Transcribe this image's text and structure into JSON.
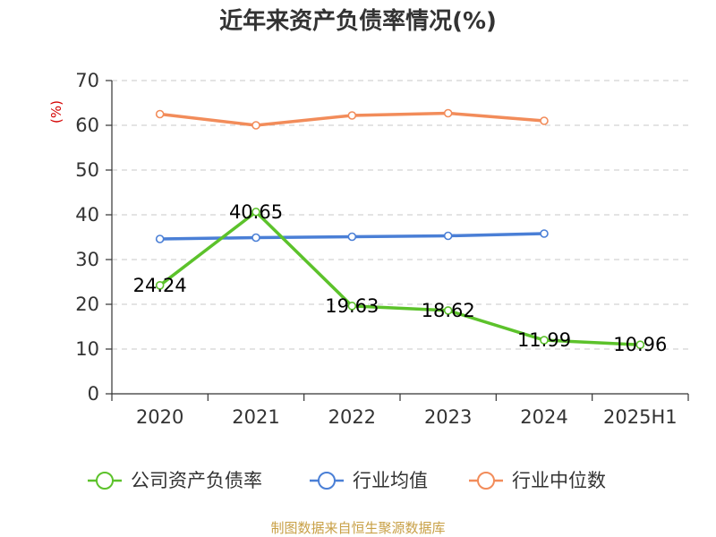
{
  "chart_data": {
    "type": "line",
    "title": "近年来资产负债率情况(%)",
    "ylabel": "(%)",
    "xlabel": "",
    "ylim": [
      0,
      70
    ],
    "yticks": [
      0,
      10,
      20,
      30,
      40,
      50,
      60,
      70
    ],
    "categories": [
      "2020",
      "2021",
      "2022",
      "2023",
      "2024",
      "2025H1"
    ],
    "grid": true,
    "legend_position": "bottom",
    "series": [
      {
        "name": "公司资产负债率",
        "color": "#5cc22b",
        "values": [
          24.24,
          40.65,
          19.63,
          18.62,
          11.99,
          10.96
        ],
        "data_labels": [
          "24.24",
          "40.65",
          "19.63",
          "18.62",
          "11.99",
          "10.96"
        ]
      },
      {
        "name": "行业均值",
        "color": "#4a7fd6",
        "values": [
          34.6,
          34.9,
          35.1,
          35.3,
          35.8,
          null
        ]
      },
      {
        "name": "行业中位数",
        "color": "#f28c5a",
        "values": [
          62.5,
          60.0,
          62.2,
          62.7,
          61.0,
          null
        ]
      }
    ]
  },
  "footer": {
    "source": "制图数据来自恒生聚源数据库"
  }
}
